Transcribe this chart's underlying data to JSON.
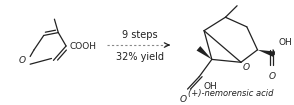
{
  "bg_color": "#ffffff",
  "line_color": "#222222",
  "line_width": 0.9,
  "arrow_color": "#444444",
  "dash_color": "#888888",
  "text_9steps": "9 steps",
  "text_yield": "32% yield",
  "text_name": "(+)-nemorensic acid",
  "font_size_label": 7.0,
  "font_size_name": 6.0,
  "font_size_atom": 6.5
}
